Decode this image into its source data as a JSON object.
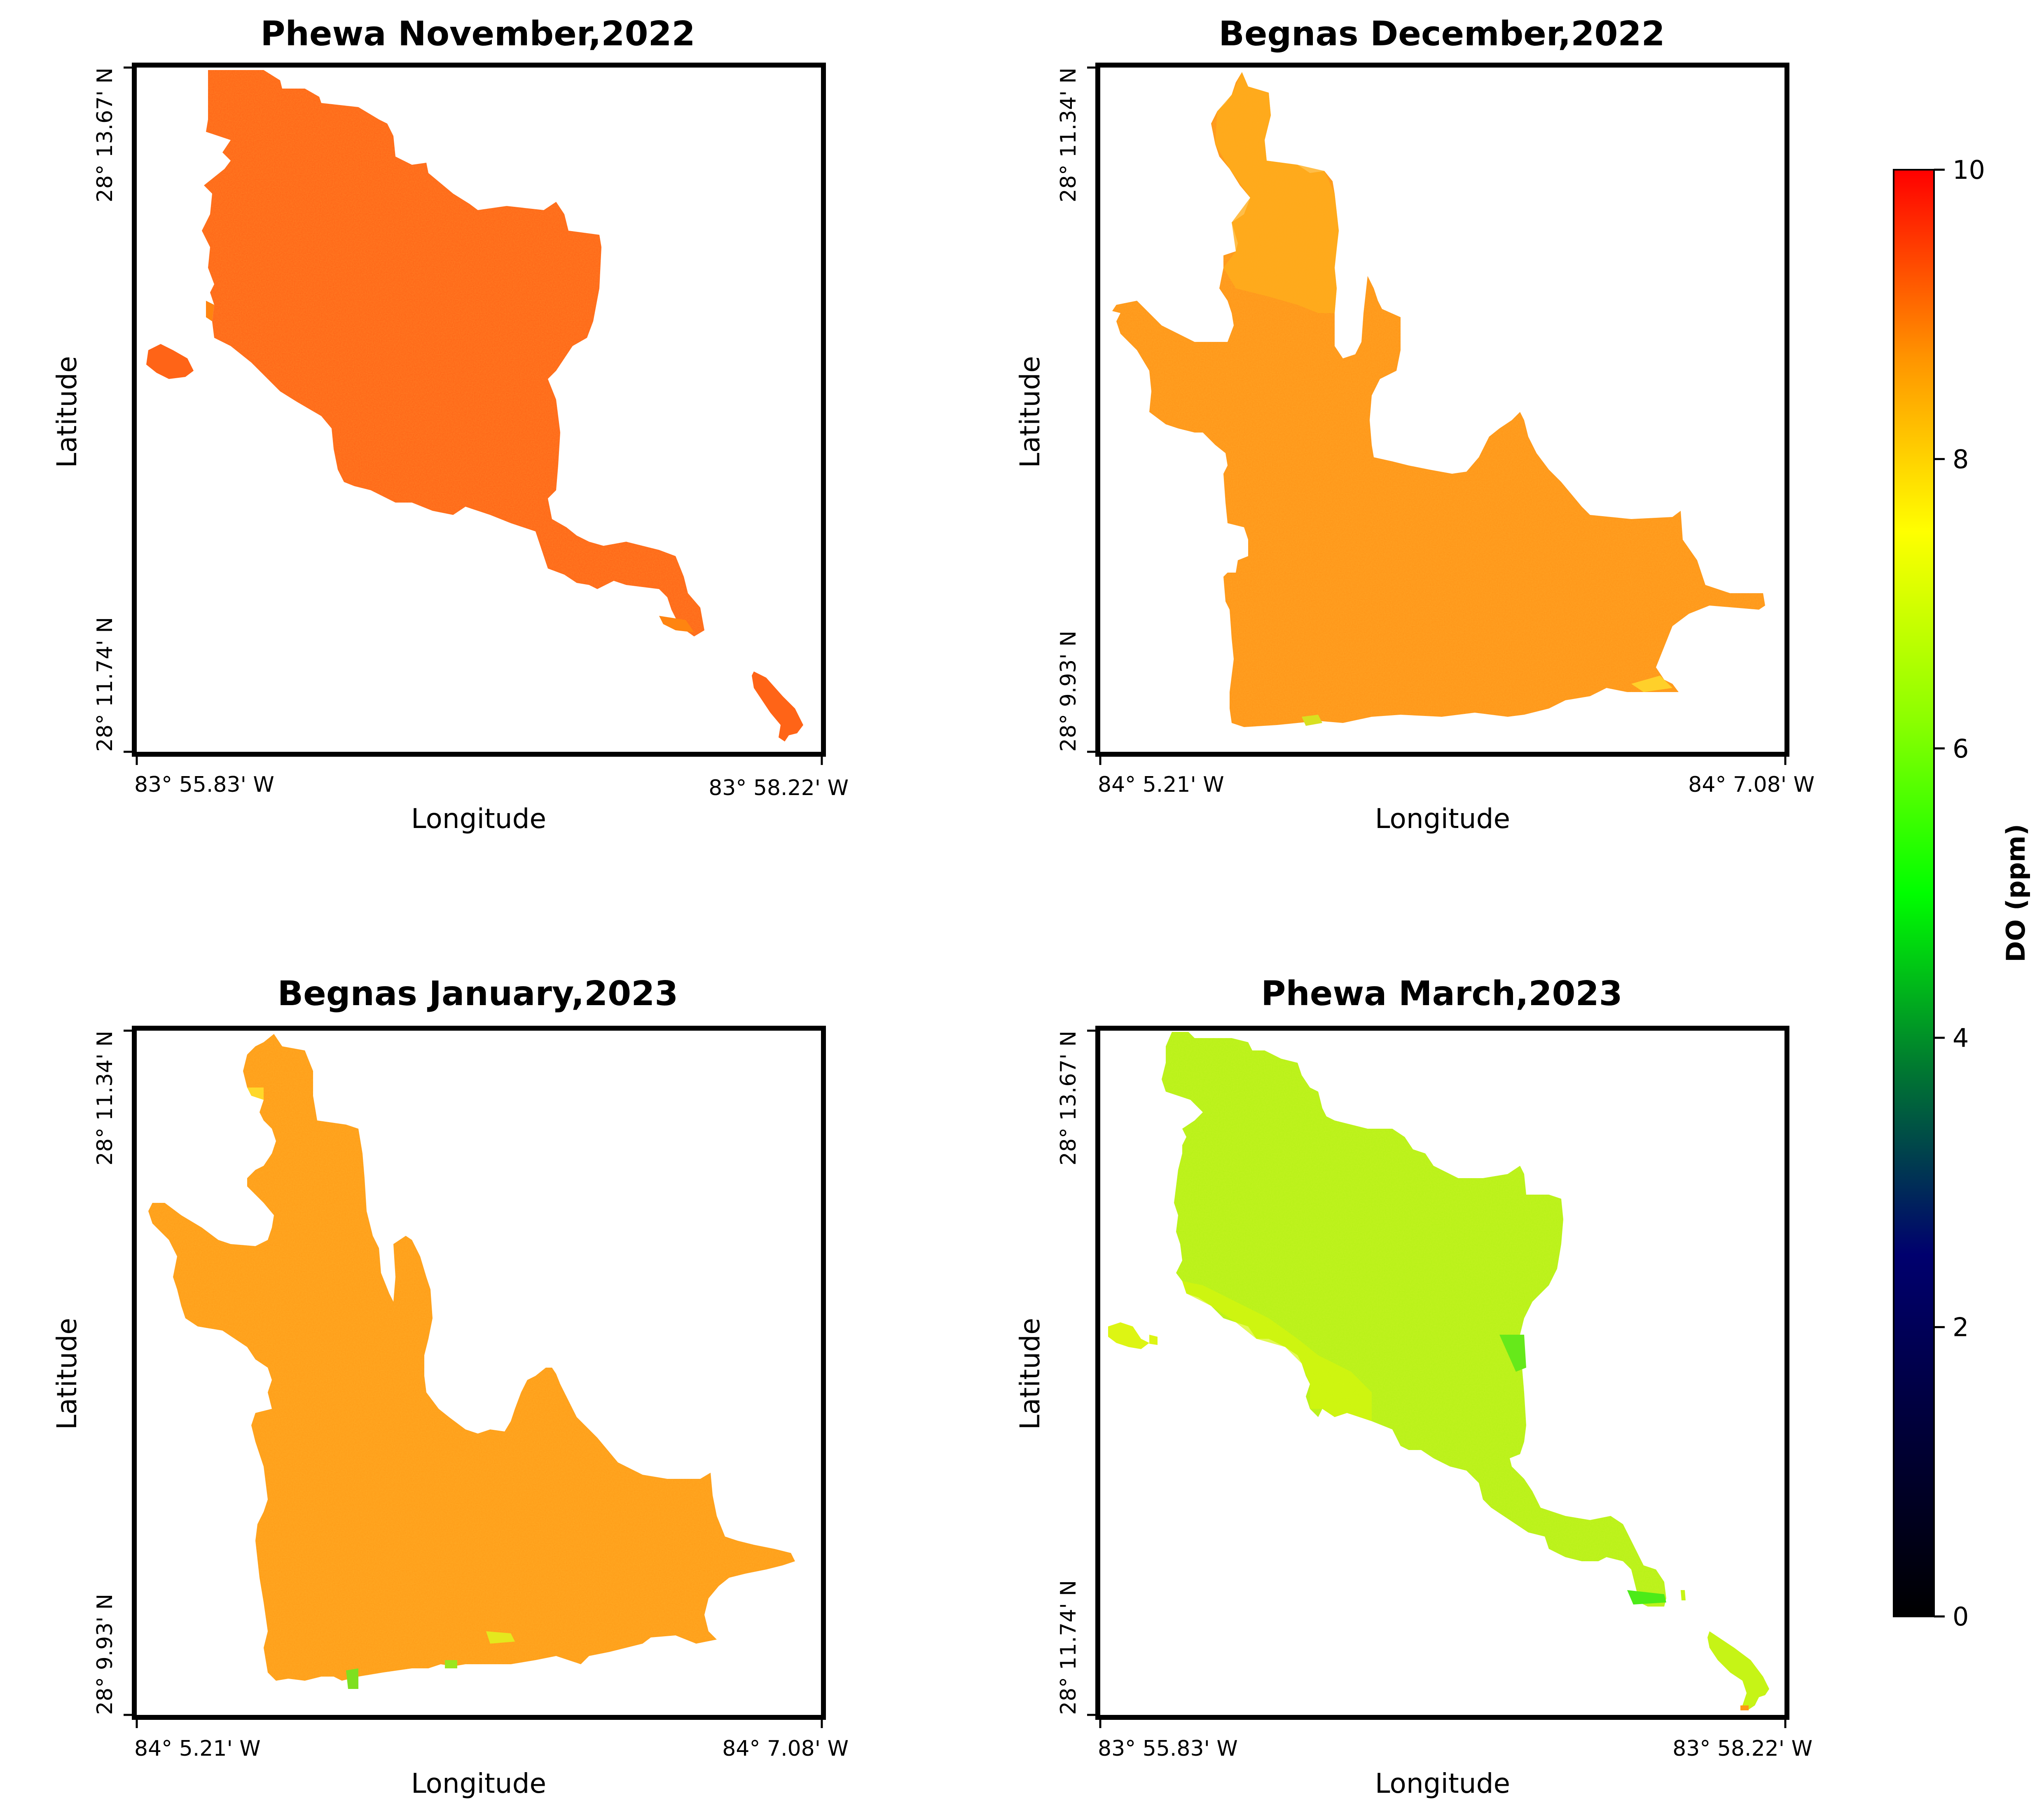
{
  "chart_data": [
    {
      "type": "heatmap",
      "lake": "Phewa",
      "title": "Phewa November,2022",
      "xlabel": "Longitude",
      "ylabel": "Latitude",
      "x_ticks": [
        "83° 55.83' W",
        "83° 58.22' W"
      ],
      "y_ticks": [
        "28° 11.74' N",
        "28° 13.67' N"
      ],
      "dominant_do_ppm": 9.0,
      "fill_color": "#FF6417",
      "accent_color": "#FF8410"
    },
    {
      "type": "heatmap",
      "lake": "Begnas",
      "title": "Begnas December,2022",
      "xlabel": "Longitude",
      "ylabel": "Latitude",
      "x_ticks": [
        "84° 5.21' W",
        "84° 7.08' W"
      ],
      "y_ticks": [
        "28° 9.93' N",
        "28° 11.34' N"
      ],
      "dominant_do_ppm": 8.3,
      "fill_color": "#FF9418",
      "accent_color": "#FFAE1C"
    },
    {
      "type": "heatmap",
      "lake": "Begnas",
      "title": "Begnas January,2023",
      "xlabel": "Longitude",
      "ylabel": "Latitude",
      "x_ticks": [
        "84° 5.21' W",
        "84° 7.08' W"
      ],
      "y_ticks": [
        "28° 9.93' N",
        "28° 11.34' N"
      ],
      "dominant_do_ppm": 8.4,
      "fill_color": "#FF9C18",
      "accent_color": "#FFB220"
    },
    {
      "type": "heatmap",
      "lake": "Phewa",
      "title": "Phewa March,2023",
      "xlabel": "Longitude",
      "ylabel": "Latitude",
      "x_ticks": [
        "83° 55.83' W",
        "83° 58.22' W"
      ],
      "y_ticks": [
        "28° 11.74' N",
        "28° 13.67' N"
      ],
      "dominant_do_ppm": 6.8,
      "fill_color": "#B6F316",
      "accent_color": "#D6F60C"
    }
  ],
  "colorbar": {
    "label": "DO (ppm)",
    "range": [
      0,
      10
    ],
    "ticks": [
      "0",
      "2",
      "4",
      "6",
      "8",
      "10"
    ],
    "colormap": [
      "#000000",
      "#000066",
      "#008000",
      "#00FF00",
      "#FFFF00",
      "#FF8000",
      "#FF0000"
    ]
  }
}
